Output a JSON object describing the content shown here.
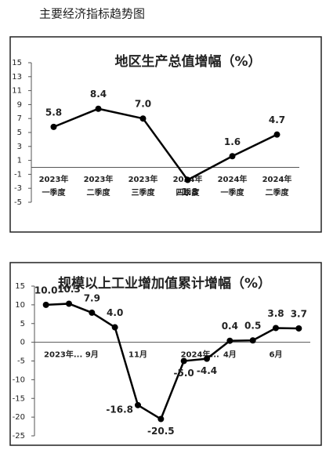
{
  "page_title": "主要经济指标趋势图",
  "chart_data": [
    {
      "type": "line",
      "title": "地区生产总值增幅（%）",
      "categories": [
        [
          "2023年",
          "一季度"
        ],
        [
          "2023年",
          "二季度"
        ],
        [
          "2023年",
          "三季度"
        ],
        [
          "2024年",
          "四季度"
        ],
        [
          "2024年",
          "一季度"
        ],
        [
          "2024年",
          "二季度"
        ]
      ],
      "values": [
        5.8,
        8.4,
        7.0,
        -1.8,
        1.6,
        4.7
      ],
      "value_labels": [
        "5.8",
        "8.4",
        "7.0",
        "-1.8",
        "1.6",
        "4.7"
      ],
      "color": "#000000",
      "ylim": [
        -5,
        15
      ],
      "yticks": [
        -5,
        -3,
        -1,
        1,
        3,
        5,
        7,
        9,
        11,
        13,
        15
      ]
    },
    {
      "type": "line",
      "title": "规模以上工业增加值累计增幅（%）",
      "categories": [
        "2023年...",
        null,
        "9月",
        null,
        "11月",
        null,
        "2024年...",
        null,
        "4月",
        null,
        "6月",
        null
      ],
      "values": [
        10.0,
        10.3,
        7.9,
        4.0,
        -16.8,
        -20.5,
        -5.0,
        -4.4,
        0.4,
        0.5,
        3.8,
        3.7
      ],
      "value_labels": [
        "10.0",
        "10.3",
        "7.9",
        "4.0",
        "-16.8",
        "-20.5",
        "-5.0",
        "-4.4",
        "0.4",
        "0.5",
        "3.8",
        "3.7"
      ],
      "color": "#000000",
      "ylim": [
        -25,
        15
      ],
      "yticks": [
        -25,
        -20,
        -15,
        -10,
        -5,
        0,
        5,
        10,
        15
      ]
    }
  ]
}
